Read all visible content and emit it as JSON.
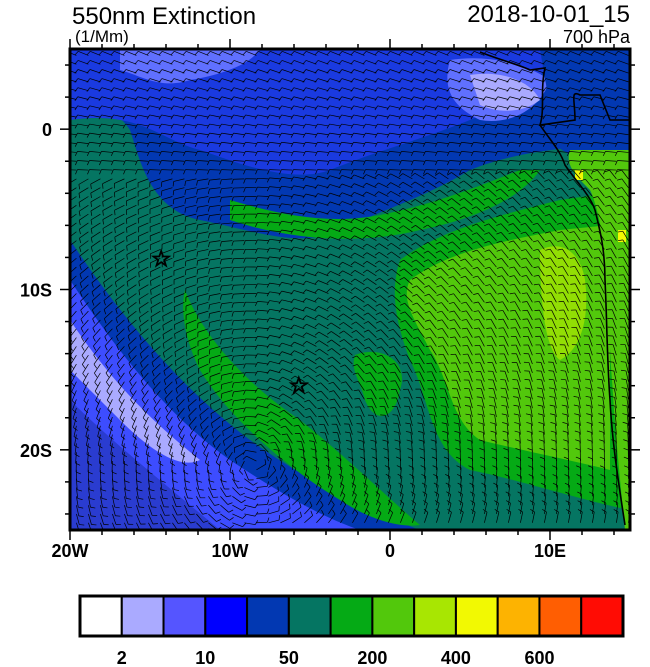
{
  "header": {
    "title": "550nm Extinction",
    "units": "(1/Mm)",
    "time": "2018-10-01_15",
    "level": "700 hPa"
  },
  "map": {
    "lon_range": [
      -20,
      15
    ],
    "lat_range": [
      -25,
      5
    ],
    "x_ticks": [
      {
        "value": -20,
        "label": "20W"
      },
      {
        "value": -10,
        "label": "10W"
      },
      {
        "value": 0,
        "label": "0"
      },
      {
        "value": 10,
        "label": "10E"
      }
    ],
    "y_ticks": [
      {
        "value": 0,
        "label": "0"
      },
      {
        "value": -10,
        "label": "10S"
      },
      {
        "value": -20,
        "label": "20S"
      }
    ],
    "markers": [
      {
        "type": "star",
        "lon": -14.3,
        "lat": -8.1
      },
      {
        "type": "star",
        "lon": -5.7,
        "lat": -16.0
      }
    ],
    "overlay": "wind-barbs"
  },
  "colorbar": {
    "colors": [
      "#ffffff",
      "#aaaaff",
      "#5555ff",
      "#0000ff",
      "#0238b2",
      "#057562",
      "#05aa15",
      "#52c80c",
      "#a8e602",
      "#f2f902",
      "#fdb301",
      "#ff5e02",
      "#ff0c04"
    ],
    "labels": [
      {
        "after_box": 1,
        "text": "2"
      },
      {
        "after_box": 3,
        "text": "10"
      },
      {
        "after_box": 5,
        "text": "50"
      },
      {
        "after_box": 7,
        "text": "200"
      },
      {
        "after_box": 9,
        "text": "400"
      },
      {
        "after_box": 11,
        "text": "600"
      }
    ]
  }
}
